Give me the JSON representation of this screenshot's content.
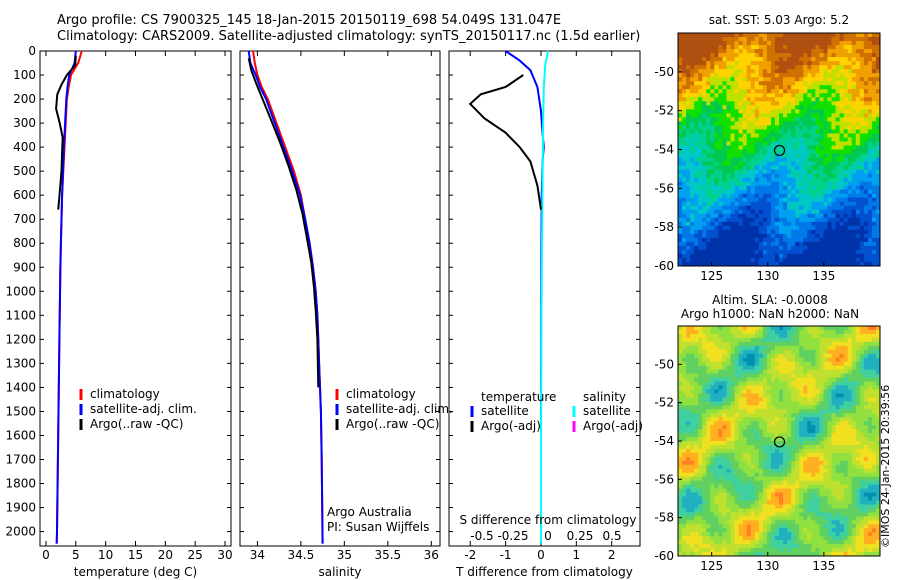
{
  "header": {
    "line1": "Argo profile: CS 7900325_145 18-Jan-2015 20150119_698 54.049S 131.047E",
    "line2": "Climatology: CARS2009. Satellite-adjusted climatology: synTS_20150117.nc (1.5d earlier)"
  },
  "credit": "©IMOS 24-Jan-2015 20:39:56",
  "colors": {
    "climatology": "#ff0000",
    "satellite": "#0000ff",
    "argo": "#000000",
    "satellite_s": "#00ffff",
    "argo_s": "#ff00ff"
  },
  "chart_data": [
    {
      "type": "line",
      "name": "temperature-panel",
      "xlabel": "temperature (deg C)",
      "ylabel": "",
      "xlim": [
        -1,
        31
      ],
      "ylim": [
        2060,
        0
      ],
      "xticks": [
        0,
        5,
        10,
        15,
        20,
        25,
        30
      ],
      "yticks": [
        0,
        100,
        200,
        300,
        400,
        500,
        600,
        700,
        800,
        900,
        1000,
        1100,
        1200,
        1300,
        1400,
        1500,
        1600,
        1700,
        1800,
        1900,
        2000
      ],
      "legend": [
        "climatology",
        "satellite-adj. clim.",
        "Argo(..raw -QC)"
      ],
      "series": [
        {
          "name": "climatology",
          "color": "#ff0000",
          "x": [
            6.0,
            5.4,
            4.2,
            3.8,
            3.5,
            3.3,
            3.1,
            2.9,
            2.7,
            2.6,
            2.5,
            2.4,
            2.35,
            2.3,
            2.25,
            2.2,
            2.15,
            2.1,
            2.05,
            2.0,
            1.95,
            1.9,
            1.85,
            1.8
          ],
          "y": [
            0,
            50,
            100,
            150,
            200,
            300,
            400,
            500,
            600,
            700,
            800,
            900,
            1000,
            1100,
            1200,
            1300,
            1400,
            1500,
            1600,
            1700,
            1800,
            1900,
            2000,
            2050
          ]
        },
        {
          "name": "satellite-adj. clim.",
          "color": "#0000ff",
          "x": [
            5.0,
            4.8,
            3.9,
            3.6,
            3.4,
            3.2,
            3.0,
            2.85,
            2.7,
            2.6,
            2.5,
            2.42,
            2.36,
            2.3,
            2.25,
            2.2,
            2.15,
            2.1,
            2.05,
            2.0,
            1.95,
            1.9,
            1.85,
            1.8
          ],
          "y": [
            0,
            50,
            100,
            150,
            200,
            300,
            400,
            500,
            600,
            700,
            800,
            900,
            1000,
            1100,
            1200,
            1300,
            1400,
            1500,
            1600,
            1700,
            1800,
            1900,
            2000,
            2050
          ]
        },
        {
          "name": "Argo(..raw -QC)",
          "color": "#000000",
          "x": [
            5.0,
            4.9,
            3.5,
            2.6,
            1.9,
            1.7,
            2.3,
            2.8,
            2.7,
            2.6,
            2.4,
            2.2,
            2.05
          ],
          "y": [
            20,
            60,
            100,
            140,
            180,
            240,
            300,
            360,
            420,
            500,
            560,
            620,
            660
          ]
        }
      ]
    },
    {
      "type": "line",
      "name": "salinity-panel",
      "xlabel": "salinity",
      "ylabel": "",
      "xlim": [
        33.8,
        36.1
      ],
      "ylim": [
        2060,
        0
      ],
      "xticks": [
        34,
        34.5,
        35,
        35.5,
        36
      ],
      "legend": [
        "climatology",
        "satellite-adj. clim.",
        "Argo(..raw -QC)"
      ],
      "annotation": [
        "Argo Australia",
        "PI: Susan Wijffels"
      ],
      "series": [
        {
          "name": "climatology",
          "color": "#ff0000",
          "x": [
            33.95,
            33.97,
            34.0,
            34.05,
            34.12,
            34.22,
            34.32,
            34.42,
            34.5,
            34.55,
            34.6,
            34.64,
            34.67,
            34.69,
            34.7,
            34.71,
            34.72,
            34.73,
            34.74,
            34.75
          ],
          "y": [
            0,
            50,
            100,
            150,
            200,
            300,
            400,
            500,
            600,
            700,
            800,
            900,
            1000,
            1100,
            1200,
            1300,
            1400,
            1500,
            1700,
            2050
          ]
        },
        {
          "name": "satellite-adj. clim.",
          "color": "#0000ff",
          "x": [
            33.9,
            33.92,
            33.98,
            34.03,
            34.1,
            34.2,
            34.3,
            34.4,
            34.49,
            34.55,
            34.6,
            34.64,
            34.67,
            34.69,
            34.7,
            34.71,
            34.72,
            34.73,
            34.74,
            34.75
          ],
          "y": [
            0,
            50,
            100,
            150,
            200,
            300,
            400,
            500,
            600,
            700,
            800,
            900,
            1000,
            1100,
            1200,
            1300,
            1400,
            1500,
            1700,
            2050
          ]
        },
        {
          "name": "Argo(..raw -QC)",
          "color": "#000000",
          "x": [
            33.9,
            33.93,
            33.98,
            34.06,
            34.15,
            34.26,
            34.36,
            34.45,
            34.52,
            34.57,
            34.62,
            34.65,
            34.67,
            34.69,
            34.7
          ],
          "y": [
            30,
            80,
            130,
            200,
            280,
            380,
            480,
            580,
            680,
            780,
            880,
            980,
            1080,
            1200,
            1400
          ]
        }
      ]
    },
    {
      "type": "line",
      "name": "difference-panel",
      "xlabel": "T difference from climatology",
      "x2label": "S difference from climatology",
      "xlim": [
        -2.6,
        2.8
      ],
      "ylim": [
        2060,
        0
      ],
      "xticks": [
        -2,
        -1,
        0,
        1,
        2
      ],
      "x2ticks": [
        "-0.5",
        "-0.25",
        "0",
        "0.25",
        "0.5"
      ],
      "legend_headers": [
        "temperature",
        "salinity"
      ],
      "legend": [
        "satellite",
        "Argo(-adj)",
        "satellite",
        "Argo(-adj)"
      ],
      "series": [
        {
          "name": "T satellite",
          "color": "#0000ff",
          "x": [
            -1.0,
            -0.6,
            -0.3,
            -0.1,
            0.0,
            0.05,
            0.08,
            0.05,
            0.02,
            0.01,
            0.0,
            0.0
          ],
          "y": [
            0,
            40,
            80,
            150,
            250,
            350,
            400,
            450,
            600,
            900,
            1400,
            2050
          ]
        },
        {
          "name": "S satellite",
          "color": "#00ffff",
          "x": [
            0.2,
            0.12,
            0.08,
            0.06,
            0.05,
            0.03,
            0.01,
            0.0,
            0.0
          ],
          "y": [
            0,
            60,
            150,
            300,
            500,
            800,
            1200,
            1600,
            2050
          ]
        },
        {
          "name": "T Argo(-adj)",
          "color": "#000000",
          "x": [
            -0.5,
            -1.0,
            -1.7,
            -2.0,
            -1.6,
            -1.0,
            -0.6,
            -0.3,
            -0.1,
            0.0
          ],
          "y": [
            100,
            150,
            180,
            220,
            280,
            340,
            400,
            460,
            560,
            660
          ]
        }
      ]
    },
    {
      "type": "heatmap",
      "name": "sst-map",
      "title": "sat. SST: 5.03 Argo: 5.2",
      "xticks": [
        125,
        130,
        135
      ],
      "yticks": [
        -50,
        -52,
        -54,
        -56,
        -58,
        -60
      ],
      "xlim": [
        122,
        140
      ],
      "ylim": [
        -60,
        -48
      ],
      "marker": [
        131.047,
        -54.049
      ]
    },
    {
      "type": "heatmap",
      "name": "sla-map",
      "title": [
        "Altim. SLA: -0.0008",
        "Argo h1000: NaN h2000: NaN"
      ],
      "xticks": [
        125,
        130,
        135
      ],
      "yticks": [
        -50,
        -52,
        -54,
        -56,
        -58,
        -60
      ],
      "xlim": [
        122,
        140
      ],
      "ylim": [
        -60,
        -48
      ],
      "marker": [
        131.047,
        -54.049
      ]
    }
  ]
}
